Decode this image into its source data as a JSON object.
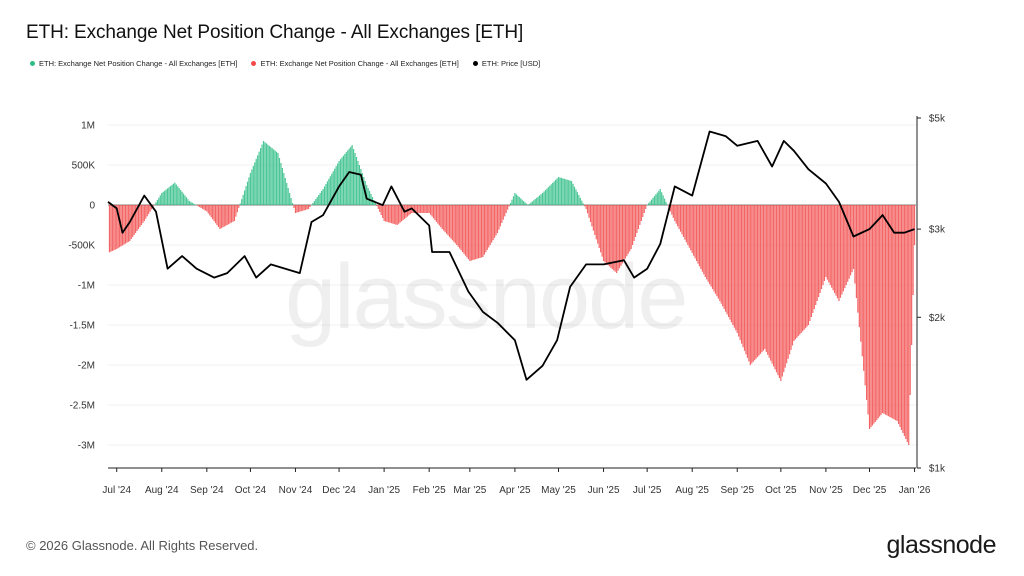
{
  "title": "ETH: Exchange Net Position Change - All Exchanges [ETH]",
  "legend": [
    {
      "label": "ETH: Exchange Net Position Change - All Exchanges [ETH]",
      "color": "#2ebd85"
    },
    {
      "label": "ETH: Exchange Net Position Change - All Exchanges [ETH]",
      "color": "#f24a4a"
    },
    {
      "label": "ETH: Price [USD]",
      "color": "#000000"
    }
  ],
  "footer": "© 2026 Glassnode. All Rights Reserved.",
  "logo": "glassnode",
  "watermark": "glassnode",
  "chart_data": {
    "type": "bar",
    "title": "ETH: Exchange Net Position Change - All Exchanges [ETH]",
    "xlabel": "",
    "ylabel": "",
    "y_ticks": [
      "1M",
      "500K",
      "0",
      "-500K",
      "-1M",
      "-1.5M",
      "-2M",
      "-2.5M",
      "-3M"
    ],
    "y_tick_values": [
      1000000,
      500000,
      0,
      -500000,
      -1000000,
      -1500000,
      -2000000,
      -2500000,
      -3000000
    ],
    "y2_ticks": [
      "$5k",
      "$3k",
      "$2k",
      "$1k"
    ],
    "y2_tick_values": [
      5000,
      3000,
      2000,
      1000
    ],
    "y2_scale": "log",
    "x_ticks": [
      "Jul '24",
      "Aug '24",
      "Sep '24",
      "Oct '24",
      "Nov '24",
      "Dec '24",
      "Jan '25",
      "Feb '25",
      "Mar '25",
      "Apr '25",
      "May '25",
      "Jun '25",
      "Jul '25",
      "Aug '25",
      "Sep '25",
      "Oct '25",
      "Nov '25",
      "Dec '25",
      "Jan '26"
    ],
    "colors": {
      "positive": "#2ebd85",
      "negative": "#f24a4a",
      "price": "#000000"
    },
    "net_position_change": {
      "dates": [
        "2024-06-25",
        "2024-07-01",
        "2024-07-10",
        "2024-07-20",
        "2024-08-01",
        "2024-08-10",
        "2024-08-20",
        "2024-09-01",
        "2024-09-10",
        "2024-09-20",
        "2024-10-01",
        "2024-10-10",
        "2024-10-20",
        "2024-11-01",
        "2024-11-10",
        "2024-11-20",
        "2024-12-01",
        "2024-12-10",
        "2024-12-20",
        "2025-01-01",
        "2025-01-10",
        "2025-01-20",
        "2025-02-01",
        "2025-02-10",
        "2025-02-20",
        "2025-03-01",
        "2025-03-10",
        "2025-03-20",
        "2025-04-01",
        "2025-04-10",
        "2025-04-20",
        "2025-05-01",
        "2025-05-10",
        "2025-05-20",
        "2025-06-01",
        "2025-06-10",
        "2025-06-20",
        "2025-07-01",
        "2025-07-10",
        "2025-07-20",
        "2025-08-01",
        "2025-08-10",
        "2025-08-20",
        "2025-09-01",
        "2025-09-10",
        "2025-09-20",
        "2025-10-01",
        "2025-10-10",
        "2025-10-20",
        "2025-11-01",
        "2025-11-10",
        "2025-11-20",
        "2025-12-01",
        "2025-12-10",
        "2025-12-20",
        "2025-12-28",
        "2026-01-01"
      ],
      "values": [
        -600000,
        -550000,
        -450000,
        -200000,
        150000,
        280000,
        50000,
        -80000,
        -300000,
        -200000,
        400000,
        800000,
        650000,
        -100000,
        -50000,
        200000,
        550000,
        750000,
        250000,
        -200000,
        -250000,
        -100000,
        -100000,
        -300000,
        -500000,
        -700000,
        -650000,
        -350000,
        150000,
        0,
        150000,
        350000,
        300000,
        -50000,
        -700000,
        -850000,
        -550000,
        0,
        200000,
        -200000,
        -600000,
        -900000,
        -1200000,
        -1600000,
        -2000000,
        -1800000,
        -2200000,
        -1700000,
        -1500000,
        -900000,
        -1200000,
        -800000,
        -2800000,
        -2600000,
        -2700000,
        -3000000,
        -500000
      ]
    },
    "price_usd": {
      "dates": [
        "2024-06-25",
        "2024-07-01",
        "2024-07-05",
        "2024-07-10",
        "2024-07-20",
        "2024-07-28",
        "2024-08-05",
        "2024-08-15",
        "2024-08-25",
        "2024-09-06",
        "2024-09-15",
        "2024-09-27",
        "2024-10-05",
        "2024-10-15",
        "2024-10-25",
        "2024-11-04",
        "2024-11-12",
        "2024-11-20",
        "2024-12-01",
        "2024-12-08",
        "2024-12-16",
        "2024-12-20",
        "2024-12-31",
        "2025-01-06",
        "2025-01-15",
        "2025-01-20",
        "2025-02-01",
        "2025-02-03",
        "2025-02-15",
        "2025-02-28",
        "2025-03-10",
        "2025-03-20",
        "2025-04-01",
        "2025-04-09",
        "2025-04-20",
        "2025-04-30",
        "2025-05-09",
        "2025-05-20",
        "2025-06-01",
        "2025-06-15",
        "2025-06-22",
        "2025-07-01",
        "2025-07-10",
        "2025-07-20",
        "2025-08-01",
        "2025-08-13",
        "2025-08-24",
        "2025-09-01",
        "2025-09-15",
        "2025-09-25",
        "2025-10-03",
        "2025-10-10",
        "2025-10-20",
        "2025-11-01",
        "2025-11-10",
        "2025-11-20",
        "2025-12-01",
        "2025-12-10",
        "2025-12-18",
        "2025-12-25",
        "2026-01-01"
      ],
      "values": [
        3400,
        3300,
        2950,
        3100,
        3500,
        3250,
        2500,
        2650,
        2500,
        2400,
        2450,
        2650,
        2400,
        2550,
        2500,
        2450,
        3100,
        3200,
        3650,
        3900,
        3850,
        3450,
        3350,
        3650,
        3250,
        3300,
        3050,
        2700,
        2700,
        2250,
        2050,
        1950,
        1800,
        1500,
        1600,
        1800,
        2300,
        2550,
        2550,
        2600,
        2400,
        2500,
        2800,
        3650,
        3500,
        4700,
        4600,
        4400,
        4500,
        4000,
        4500,
        4300,
        3950,
        3700,
        3400,
        2900,
        3000,
        3200,
        2950,
        2950,
        3000
      ]
    }
  }
}
